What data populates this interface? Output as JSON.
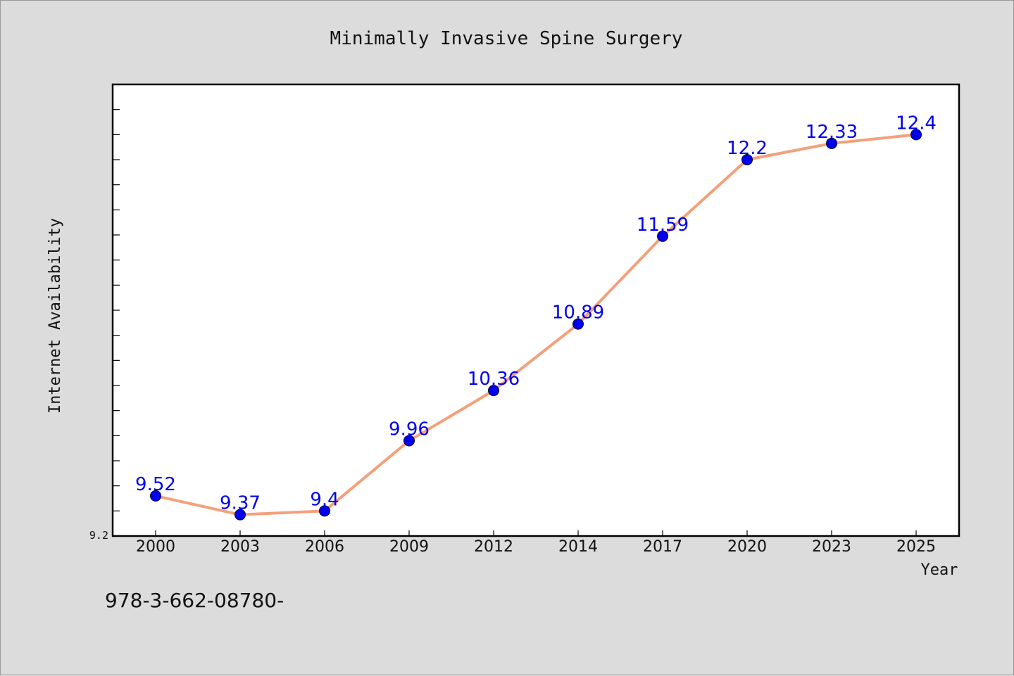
{
  "chart_data": {
    "type": "line",
    "title": "Minimally Invasive Spine Surgery",
    "xlabel": "Year",
    "ylabel": "Internet Availability",
    "categories": [
      "2000",
      "2003",
      "2006",
      "2009",
      "2012",
      "2014",
      "2017",
      "2020",
      "2023",
      "2025"
    ],
    "series": [
      {
        "values": [
          9.52,
          9.37,
          9.4,
          9.96,
          10.36,
          10.89,
          11.59,
          12.2,
          12.33,
          12.4
        ],
        "labels": [
          "9.52",
          "9.37",
          "9.4",
          "9.96",
          "10.36",
          "10.89",
          "11.59",
          "12.2",
          "12.33",
          "12.4"
        ],
        "line_color": "#f4a07a",
        "marker_color": "#0000ee"
      }
    ],
    "ylim": [
      9.2,
      12.8
    ],
    "y_tick_labels": [
      "9.2"
    ],
    "grid": false,
    "legend": "none"
  },
  "footnote": "978-3-662-08780-"
}
